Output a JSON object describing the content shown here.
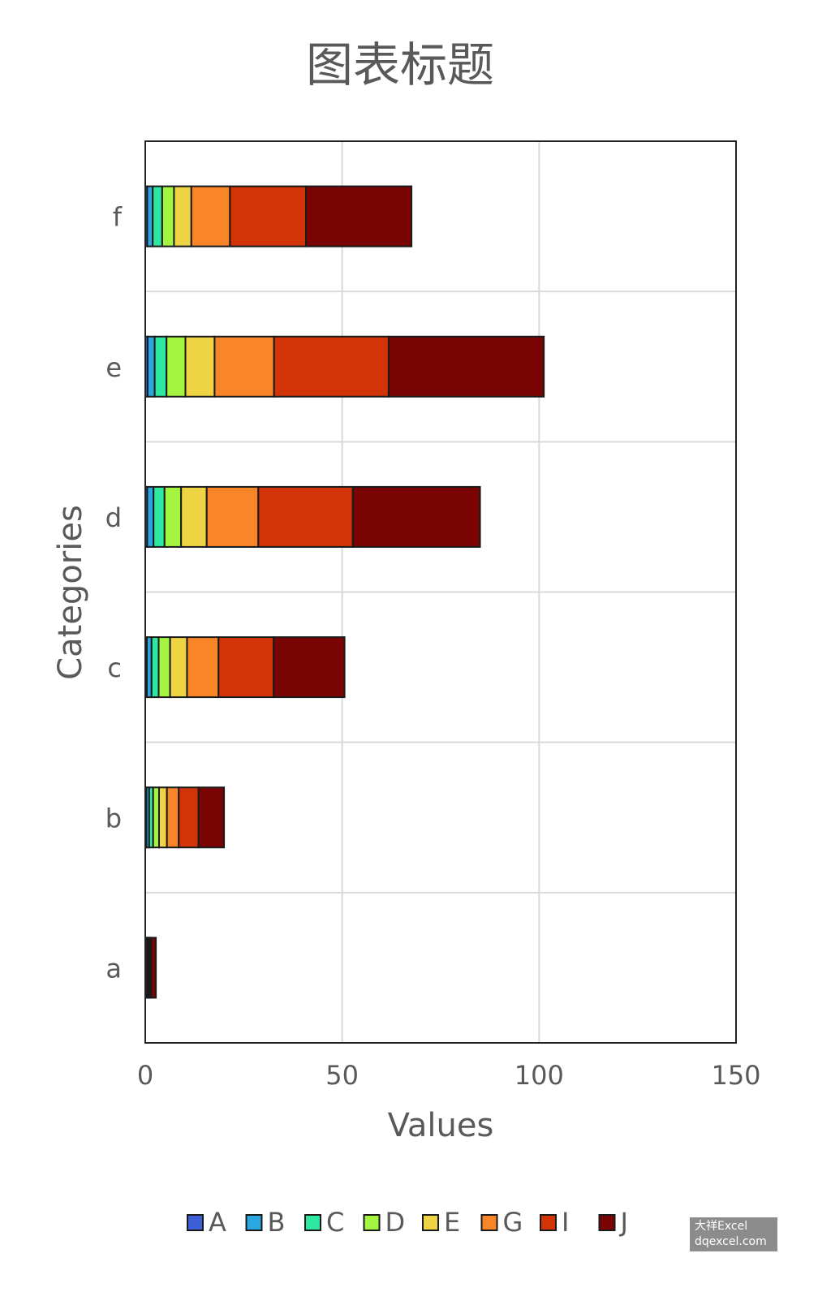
{
  "chart_data": {
    "type": "bar",
    "orientation": "horizontal",
    "stacked": true,
    "title": "图表标题",
    "xlabel": "Values",
    "ylabel": "Categories",
    "xlim": [
      0,
      150
    ],
    "xticks": [
      0,
      50,
      100,
      150
    ],
    "grid": true,
    "legend_position": "bottom",
    "categories": [
      "a",
      "b",
      "c",
      "d",
      "e",
      "f"
    ],
    "series": [
      {
        "name": "A",
        "color": "#3e5fd6",
        "values": [
          0.1,
          0.3,
          0.4,
          0.5,
          0.6,
          0.5
        ]
      },
      {
        "name": "B",
        "color": "#2aa6e0",
        "values": [
          0.2,
          0.7,
          1.2,
          1.6,
          1.8,
          1.4
        ]
      },
      {
        "name": "C",
        "color": "#2ee8a2",
        "values": [
          0.2,
          1.0,
          1.8,
          2.8,
          3.0,
          2.4
        ]
      },
      {
        "name": "D",
        "color": "#a3f542",
        "values": [
          0.2,
          1.5,
          2.9,
          4.2,
          4.8,
          3.0
        ]
      },
      {
        "name": "E",
        "color": "#eed342",
        "values": [
          0.2,
          2.0,
          4.3,
          6.5,
          7.4,
          4.4
        ]
      },
      {
        "name": "G",
        "color": "#f88528",
        "values": [
          0.3,
          3.0,
          8.0,
          13.1,
          15.1,
          9.8
        ]
      },
      {
        "name": "I",
        "color": "#d23408",
        "values": [
          0.3,
          5.0,
          14.0,
          24.0,
          29.1,
          19.3
        ]
      },
      {
        "name": "J",
        "color": "#7a0404",
        "values": [
          1.2,
          6.5,
          18.0,
          32.3,
          39.4,
          26.8
        ]
      }
    ]
  },
  "watermark": {
    "line1": "大祥Excel",
    "line2": "dqexcel.com"
  }
}
